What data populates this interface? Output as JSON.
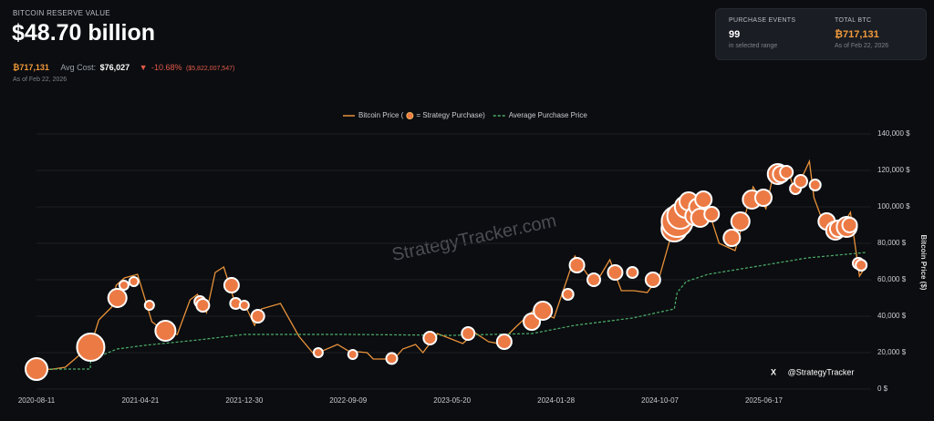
{
  "header": {
    "label": "BITCOIN RESERVE VALUE",
    "value": "$48.70 billion",
    "btc": "₿717,131",
    "avg_cost_label": "Avg Cost:",
    "avg_cost": "$76,027",
    "change_pct": "-10.68%",
    "change_usd": "($5,822,007,547)",
    "as_of": "As of Feb 22, 2026"
  },
  "card": {
    "events_label": "PURCHASE EVENTS",
    "events_value": "99",
    "events_note": "in selected range",
    "total_label": "TOTAL BTC",
    "total_value": "₿717,131",
    "total_note": "As of Feb 22, 2026"
  },
  "chart_data": {
    "type": "line",
    "watermark": "StrategyTracker.com",
    "handle": "@StrategyTracker",
    "y_label": "Bitcoin Price ($)",
    "xlim": [
      "2020-08-11",
      "2026-02-22"
    ],
    "xticks": [
      "2020-08-11",
      "2021-04-21",
      "2021-12-30",
      "2022-09-09",
      "2023-05-20",
      "2024-01-28",
      "2024-10-07",
      "2025-06-17"
    ],
    "ylim": [
      0,
      140000
    ],
    "yticks": [
      {
        "value": 0,
        "label": "0 $"
      },
      {
        "value": 20000,
        "label": "20,000 $"
      },
      {
        "value": 40000,
        "label": "40,000 $"
      },
      {
        "value": 60000,
        "label": "60,000 $"
      },
      {
        "value": 80000,
        "label": "80,000 $"
      },
      {
        "value": 100000,
        "label": "100,000 $"
      },
      {
        "value": 120000,
        "label": "120,000 $"
      },
      {
        "value": 140000,
        "label": "140,000 $"
      }
    ],
    "grid": true,
    "series": [
      {
        "name": "Bitcoin Price (",
        "type": "line",
        "color": "#e8913a",
        "x": [
          "2020-08-11",
          "2020-09-15",
          "2020-10-20",
          "2020-11-20",
          "2020-12-20",
          "2021-01-10",
          "2021-02-10",
          "2021-02-21",
          "2021-03-13",
          "2021-04-14",
          "2021-05-19",
          "2021-06-22",
          "2021-07-20",
          "2021-08-20",
          "2021-09-07",
          "2021-09-29",
          "2021-10-20",
          "2021-11-10",
          "2021-12-05",
          "2021-12-30",
          "2022-01-24",
          "2022-02-10",
          "2022-03-28",
          "2022-05-12",
          "2022-06-18",
          "2022-08-14",
          "2022-09-09",
          "2022-10-25",
          "2022-11-09",
          "2022-12-30",
          "2023-01-20",
          "2023-02-20",
          "2023-03-10",
          "2023-04-14",
          "2023-06-15",
          "2023-07-14",
          "2023-08-17",
          "2023-09-11",
          "2023-10-24",
          "2023-12-08",
          "2024-01-23",
          "2024-03-14",
          "2024-05-01",
          "2024-06-07",
          "2024-07-05",
          "2024-08-05",
          "2024-09-06",
          "2024-10-07",
          "2024-11-13",
          "2024-12-17",
          "2025-01-13",
          "2025-01-22",
          "2025-02-28",
          "2025-04-08",
          "2025-05-22",
          "2025-06-22",
          "2025-07-14",
          "2025-08-14",
          "2025-09-01",
          "2025-10-06",
          "2025-10-17",
          "2025-11-21",
          "2025-12-15",
          "2026-01-14",
          "2026-02-05",
          "2026-02-22"
        ],
        "values": [
          11500,
          10800,
          12000,
          18000,
          23000,
          38000,
          45000,
          57000,
          61000,
          63000,
          37000,
          31000,
          30000,
          49000,
          52000,
          42000,
          64000,
          67000,
          49000,
          47000,
          35000,
          44000,
          47000,
          29000,
          19000,
          24500,
          21000,
          20000,
          16500,
          16500,
          22000,
          24500,
          20000,
          30500,
          25000,
          31000,
          26000,
          25000,
          34500,
          44000,
          39000,
          73000,
          57000,
          71000,
          54000,
          54000,
          53000,
          62500,
          92000,
          106000,
          92000,
          106000,
          80000,
          76000,
          111000,
          99000,
          122000,
          121000,
          108000,
          125000,
          105000,
          84000,
          86000,
          97000,
          62000,
          68000
        ]
      },
      {
        "name": "= Strategy Purchase)",
        "type": "bubble",
        "color": "#ec7a45",
        "x": [
          "2020-08-11",
          "2020-12-21",
          "2021-02-24",
          "2021-03-12",
          "2021-04-05",
          "2021-05-13",
          "2021-06-21",
          "2021-09-13",
          "2021-09-20",
          "2021-11-29",
          "2021-12-09",
          "2021-12-30",
          "2022-02-01",
          "2022-06-28",
          "2022-09-20",
          "2022-12-24",
          "2023-03-27",
          "2023-06-28",
          "2023-09-24",
          "2023-11-30",
          "2023-12-27",
          "2024-02-26",
          "2024-03-19",
          "2024-04-29",
          "2024-06-20",
          "2024-08-01",
          "2024-09-20",
          "2024-11-11",
          "2024-11-18",
          "2024-11-25",
          "2024-12-09",
          "2024-12-16",
          "2024-12-30",
          "2025-01-06",
          "2025-01-13",
          "2025-01-21",
          "2025-02-10",
          "2025-03-31",
          "2025-04-21",
          "2025-05-19",
          "2025-06-16",
          "2025-07-21",
          "2025-07-29",
          "2025-08-11",
          "2025-09-02",
          "2025-09-15",
          "2025-10-20",
          "2025-11-17",
          "2025-12-08",
          "2025-12-15",
          "2026-01-05",
          "2026-01-12",
          "2026-02-02",
          "2026-02-09"
        ],
        "values": [
          11000,
          23000,
          50000,
          57000,
          59000,
          46000,
          32000,
          48000,
          46000,
          57000,
          47000,
          46000,
          40000,
          20000,
          19000,
          16800,
          28000,
          30500,
          26000,
          37000,
          43000,
          52000,
          68000,
          60000,
          64000,
          64000,
          60000,
          88000,
          92000,
          95000,
          100000,
          103000,
          95000,
          100000,
          94000,
          104000,
          96000,
          83000,
          92000,
          104000,
          105000,
          118000,
          118000,
          119000,
          110000,
          114000,
          112000,
          92000,
          87000,
          88000,
          89000,
          90000,
          69000,
          68000
        ],
        "sizes": [
          12,
          15,
          10,
          5,
          5,
          5,
          11,
          6,
          7,
          8,
          6,
          5,
          7,
          5,
          5,
          6,
          7,
          7,
          8,
          9,
          10,
          6,
          8,
          7,
          8,
          6,
          8,
          14,
          17,
          14,
          12,
          10,
          10,
          9,
          10,
          9,
          8,
          9,
          10,
          10,
          9,
          11,
          9,
          7,
          6,
          7,
          6,
          9,
          10,
          9,
          11,
          8,
          6,
          6
        ]
      },
      {
        "name": "Average Purchase Price",
        "type": "line",
        "dash": true,
        "color": "#4caf6a",
        "x": [
          "2020-08-11",
          "2020-12-20",
          "2020-12-21",
          "2021-02-23",
          "2021-05-01",
          "2021-09-10",
          "2021-12-30",
          "2022-09-09",
          "2023-05-20",
          "2023-12-01",
          "2024-03-14",
          "2024-08-01",
          "2024-11-11",
          "2024-11-18",
          "2024-12-10",
          "2025-02-01",
          "2025-06-17",
          "2025-10-01",
          "2026-02-22"
        ],
        "values": [
          11000,
          11000,
          16000,
          22000,
          24000,
          27000,
          30000,
          30000,
          29500,
          30500,
          35000,
          39000,
          44000,
          53000,
          59000,
          63000,
          68000,
          72000,
          75000
        ]
      }
    ]
  }
}
